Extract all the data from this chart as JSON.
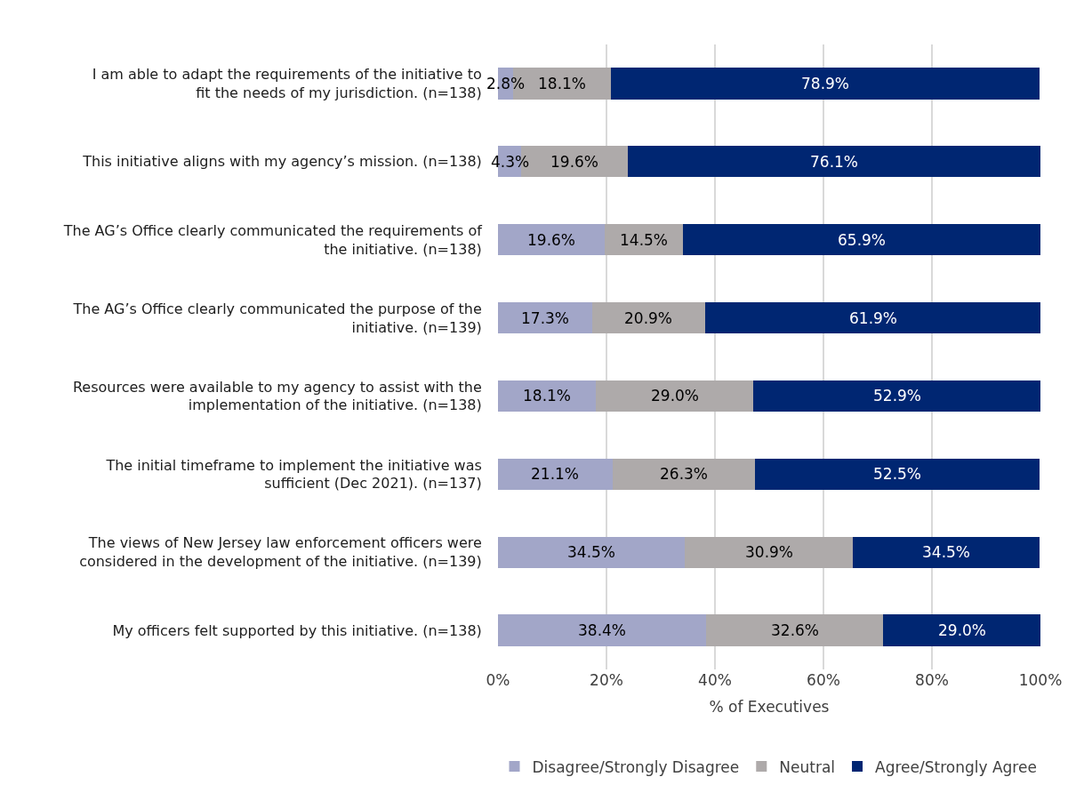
{
  "chart_data": {
    "type": "bar",
    "orientation": "horizontal",
    "stacked": true,
    "categories": [
      "I am able to adapt the requirements of the initiative to fit the needs of my jurisdiction. (n=138)",
      "This initiative aligns with my agency’s mission. (n=138)",
      "The AG’s Office clearly communicated the requirements of the initiative. (n=138)",
      "The AG’s Office clearly communicated the purpose of the initiative. (n=139)",
      "Resources were available to my agency to assist with the implementation of the initiative. (n=138)",
      "The initial timeframe to implement the initiative was sufficient (Dec 2021). (n=137)",
      "The views of New Jersey law enforcement officers were considered in the development of the initiative. (n=139)",
      "My officers felt supported by this initiative. (n=138)"
    ],
    "series": [
      {
        "name": "Disagree/Strongly Disagree",
        "color": "#a2a6c8",
        "values": [
          2.8,
          4.3,
          19.6,
          17.3,
          18.1,
          21.1,
          34.5,
          38.4
        ],
        "value_labels": [
          "2.8%",
          "4.3%",
          "19.6%",
          "17.3%",
          "18.1%",
          "21.1%",
          "34.5%",
          "38.4%"
        ]
      },
      {
        "name": "Neutral",
        "color": "#aeaaaa",
        "values": [
          18.1,
          19.6,
          14.5,
          20.9,
          29.0,
          26.3,
          30.9,
          32.6
        ],
        "value_labels": [
          "18.1%",
          "19.6%",
          "14.5%",
          "20.9%",
          "29.0%",
          "26.3%",
          "30.9%",
          "32.6%"
        ]
      },
      {
        "name": "Agree/Strongly Agree",
        "color": "#002672",
        "values": [
          78.9,
          76.1,
          65.9,
          61.9,
          52.9,
          52.5,
          34.5,
          29.0
        ],
        "value_labels": [
          "78.9%",
          "76.1%",
          "65.9%",
          "61.9%",
          "52.9%",
          "52.5%",
          "34.5%",
          "29.0%"
        ]
      }
    ],
    "xlabel": "% of Executives",
    "xlim": [
      0,
      100
    ],
    "xticks": [
      {
        "value": 0,
        "label": "0%"
      },
      {
        "value": 20,
        "label": "20%"
      },
      {
        "value": 40,
        "label": "40%"
      },
      {
        "value": 60,
        "label": "60%"
      },
      {
        "value": 80,
        "label": "80%"
      },
      {
        "value": 100,
        "label": "100%"
      }
    ],
    "grid": "x",
    "legend": "bottom"
  }
}
